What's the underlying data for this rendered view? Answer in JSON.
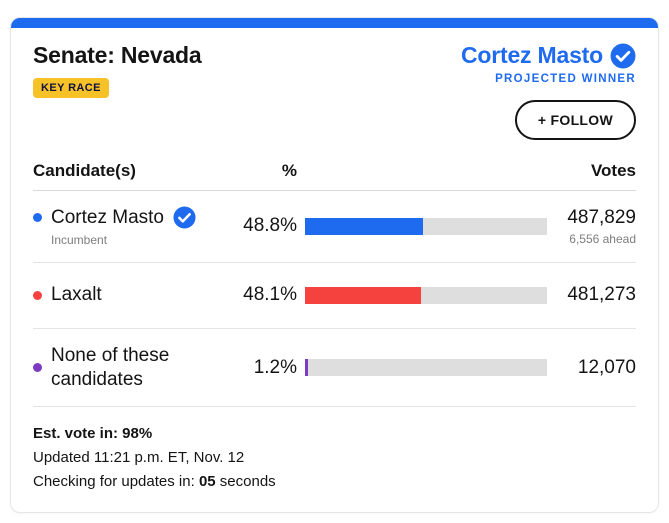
{
  "colors": {
    "accent_blue": "#1f6bf0",
    "gop_red": "#f6423e",
    "other_purple": "#7d3bc2",
    "key_race_yellow": "#f7c228",
    "bar_track_gray": "#dedede"
  },
  "header": {
    "title": "Senate: Nevada",
    "key_race_label": "KEY RACE",
    "winner_name": "Cortez Masto",
    "winner_status": "PROJECTED WINNER",
    "follow_label": "+ FOLLOW"
  },
  "table": {
    "headers": {
      "candidate": "Candidate(s)",
      "percent": "%",
      "votes": "Votes"
    },
    "rows": [
      {
        "name": "Cortez Masto",
        "subtext": "Incumbent",
        "winner": true,
        "percent": "48.8%",
        "percent_value": 48.8,
        "votes": "487,829",
        "votes_note": "6,556 ahead",
        "color": "#1f6bf0"
      },
      {
        "name": "Laxalt",
        "subtext": "",
        "winner": false,
        "percent": "48.1%",
        "percent_value": 48.1,
        "votes": "481,273",
        "votes_note": "",
        "color": "#f6423e"
      },
      {
        "name": "None of these candidates",
        "subtext": "",
        "winner": false,
        "percent": "1.2%",
        "percent_value": 1.2,
        "votes": "12,070",
        "votes_note": "",
        "color": "#7d3bc2"
      }
    ]
  },
  "chart_data": {
    "type": "bar",
    "title": "Senate: Nevada",
    "categories": [
      "Cortez Masto",
      "Laxalt",
      "None of these candidates"
    ],
    "series": [
      {
        "name": "percent_of_vote",
        "values": [
          48.8,
          48.1,
          1.2
        ]
      },
      {
        "name": "votes",
        "values": [
          487829,
          481273,
          12070
        ]
      }
    ],
    "xlim": [
      0,
      100
    ],
    "annotations": [
      "6,556 ahead"
    ]
  },
  "footer": {
    "est_vote_in": "Est. vote in: 98%",
    "updated": "Updated 11:21 p.m. ET, Nov. 12",
    "checking_prefix": "Checking for updates in: ",
    "countdown": "05",
    "checking_suffix": " seconds"
  }
}
